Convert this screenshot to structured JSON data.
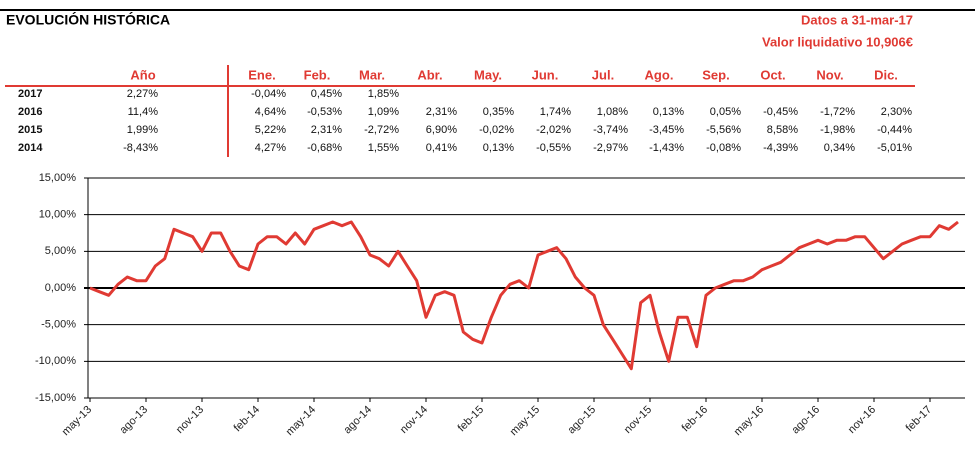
{
  "header": {
    "title": "EVOLUCIÓN HISTÓRICA",
    "date": "Datos a 31-mar-17",
    "nav": "Valor liquidativo 10,906€"
  },
  "table": {
    "columns": [
      "Año",
      "Ene.",
      "Feb.",
      "Mar.",
      "Abr.",
      "May.",
      "Jun.",
      "Jul.",
      "Ago.",
      "Sep.",
      "Oct.",
      "Nov.",
      "Dic."
    ],
    "rows": [
      {
        "year": "2017",
        "total": "2,27%",
        "months": [
          "-0,04%",
          "0,45%",
          "1,85%"
        ]
      },
      {
        "year": "2016",
        "total": "11,4%",
        "months": [
          "4,64%",
          "-0,53%",
          "1,09%",
          "2,31%",
          "0,35%",
          "1,74%",
          "1,08%",
          "0,13%",
          "0,05%",
          "-0,45%",
          "-1,72%",
          "2,30%"
        ]
      },
      {
        "year": "2015",
        "total": "1,99%",
        "months": [
          "5,22%",
          "2,31%",
          "-2,72%",
          "6,90%",
          "-0,02%",
          "-2,02%",
          "-3,74%",
          "-3,45%",
          "-5,56%",
          "8,58%",
          "-1,98%",
          "-0,44%"
        ]
      },
      {
        "year": "2014",
        "total": "-8,43%",
        "months": [
          "4,27%",
          "-0,68%",
          "1,55%",
          "0,41%",
          "0,13%",
          "-0,55%",
          "-2,97%",
          "-1,43%",
          "-0,08%",
          "-4,39%",
          "0,34%",
          "-5,01%"
        ]
      }
    ]
  },
  "chart_data": {
    "type": "line",
    "categories": [
      "may-13",
      null,
      null,
      null,
      null,
      null,
      "ago-13",
      null,
      null,
      null,
      null,
      null,
      "nov-13",
      null,
      null,
      null,
      null,
      null,
      "feb-14",
      null,
      null,
      null,
      null,
      null,
      "may-14",
      null,
      null,
      null,
      null,
      null,
      "ago-14",
      null,
      null,
      null,
      null,
      null,
      "nov-14",
      null,
      null,
      null,
      null,
      null,
      "feb-15",
      null,
      null,
      null,
      null,
      null,
      "may-15",
      null,
      null,
      null,
      null,
      null,
      "ago-15",
      null,
      null,
      null,
      null,
      null,
      "nov-15",
      null,
      null,
      null,
      null,
      null,
      "feb-16",
      null,
      null,
      null,
      null,
      null,
      "may-16",
      null,
      null,
      null,
      null,
      null,
      "ago-16",
      null,
      null,
      null,
      null,
      null,
      "nov-16",
      null,
      null,
      null,
      null,
      null,
      "feb-17",
      null,
      null,
      null
    ],
    "series": [
      {
        "name": "Evolución",
        "color": "#e03a33",
        "values": [
          0,
          -0.5,
          -1,
          0.5,
          1.5,
          1,
          1,
          3,
          4,
          8,
          7.5,
          7,
          5,
          7.5,
          7.5,
          5,
          3,
          2.5,
          6,
          7,
          7,
          6,
          7.5,
          6,
          8,
          8.5,
          9,
          8.5,
          9,
          7,
          4.5,
          4,
          3,
          5,
          3,
          1,
          -4,
          -1,
          -0.5,
          -1,
          -6,
          -7,
          -7.5,
          -4,
          -1,
          0.5,
          1,
          0,
          4.5,
          5,
          5.5,
          4,
          1.5,
          0,
          -1,
          -5,
          -7,
          -9,
          -11,
          -2,
          -1,
          -6,
          -10,
          -4,
          -4,
          -8,
          -1,
          0,
          0.5,
          1,
          1,
          1.5,
          2.5,
          3,
          3.5,
          4.5,
          5.5,
          6,
          6.5,
          6,
          6.5,
          6.5,
          7,
          7,
          5.5,
          4,
          5,
          6,
          6.5,
          7,
          7,
          8.5,
          8,
          9
        ]
      }
    ],
    "ylim": [
      -15,
      15
    ],
    "yticks": [
      {
        "value": -15,
        "label": "-15,00%"
      },
      {
        "value": -10,
        "label": "-10,00%"
      },
      {
        "value": -5,
        "label": "-5,00%"
      },
      {
        "value": 0,
        "label": "0,00%"
      },
      {
        "value": 5,
        "label": "5,00%"
      },
      {
        "value": 10,
        "label": "10,00%"
      },
      {
        "value": 15,
        "label": "15,00%"
      }
    ],
    "grid": true
  }
}
